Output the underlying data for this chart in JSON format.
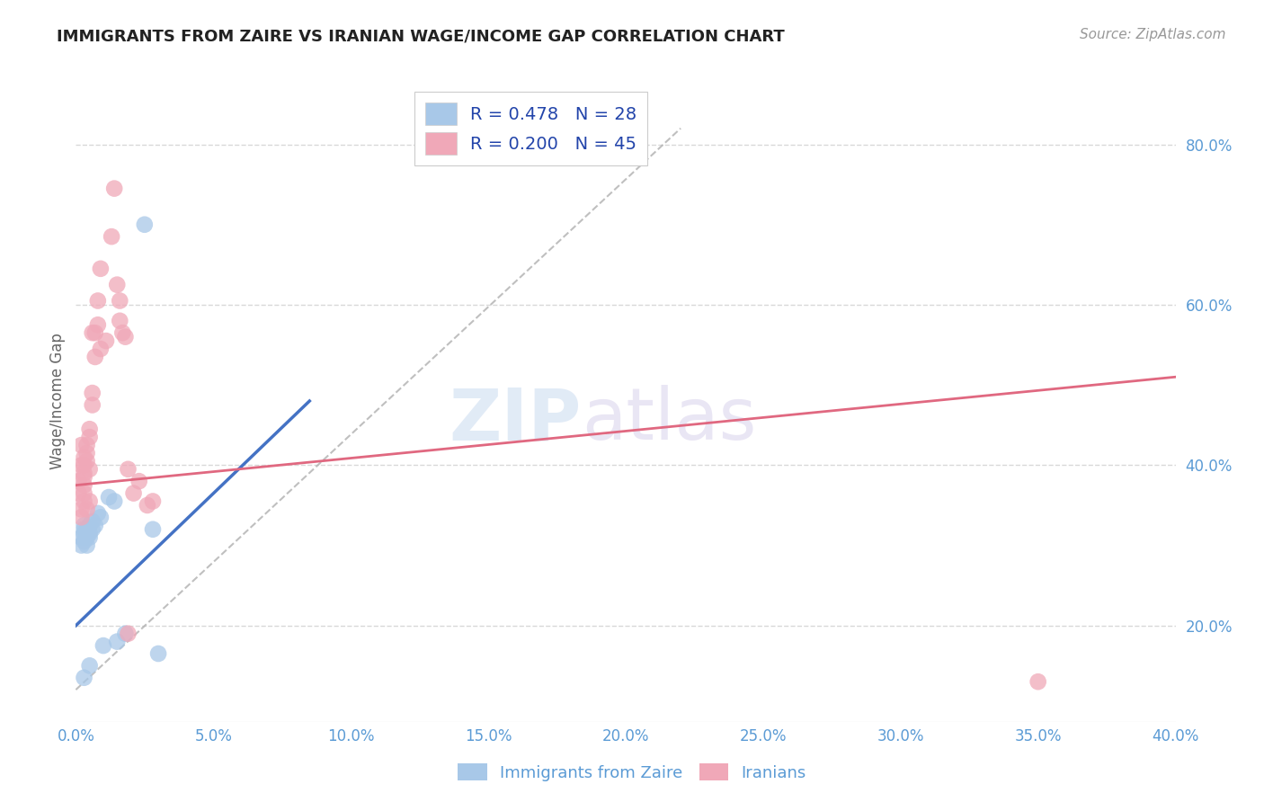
{
  "title": "IMMIGRANTS FROM ZAIRE VS IRANIAN WAGE/INCOME GAP CORRELATION CHART",
  "source": "Source: ZipAtlas.com",
  "ylabel": "Wage/Income Gap",
  "legend_labels": [
    "Immigrants from Zaire",
    "Iranians"
  ],
  "legend_R": [
    0.478,
    0.2
  ],
  "legend_N": [
    28,
    45
  ],
  "xmin": 0.0,
  "xmax": 0.4,
  "ymin": 0.08,
  "ymax": 0.88,
  "yticks": [
    0.2,
    0.4,
    0.6,
    0.8
  ],
  "xticks": [
    0.0,
    0.05,
    0.1,
    0.15,
    0.2,
    0.25,
    0.3,
    0.35,
    0.4
  ],
  "color_blue": "#a8c8e8",
  "color_pink": "#f0a8b8",
  "color_line_blue": "#4472c4",
  "color_line_pink": "#e06880",
  "color_axis_labels": "#5b9bd5",
  "watermark_zip": "ZIP",
  "watermark_atlas": "atlas",
  "blue_points": [
    [
      0.002,
      0.3
    ],
    [
      0.002,
      0.31
    ],
    [
      0.003,
      0.305
    ],
    [
      0.003,
      0.315
    ],
    [
      0.003,
      0.32
    ],
    [
      0.003,
      0.325
    ],
    [
      0.004,
      0.3
    ],
    [
      0.004,
      0.31
    ],
    [
      0.004,
      0.315
    ],
    [
      0.004,
      0.32
    ],
    [
      0.005,
      0.315
    ],
    [
      0.005,
      0.325
    ],
    [
      0.005,
      0.31
    ],
    [
      0.006,
      0.32
    ],
    [
      0.006,
      0.33
    ],
    [
      0.007,
      0.325
    ],
    [
      0.008,
      0.34
    ],
    [
      0.009,
      0.335
    ],
    [
      0.01,
      0.175
    ],
    [
      0.012,
      0.36
    ],
    [
      0.014,
      0.355
    ],
    [
      0.015,
      0.18
    ],
    [
      0.018,
      0.19
    ],
    [
      0.028,
      0.32
    ],
    [
      0.03,
      0.165
    ],
    [
      0.003,
      0.135
    ],
    [
      0.005,
      0.15
    ],
    [
      0.025,
      0.7
    ]
  ],
  "pink_points": [
    [
      0.001,
      0.38
    ],
    [
      0.001,
      0.365
    ],
    [
      0.002,
      0.345
    ],
    [
      0.002,
      0.425
    ],
    [
      0.002,
      0.4
    ],
    [
      0.002,
      0.335
    ],
    [
      0.003,
      0.41
    ],
    [
      0.003,
      0.4
    ],
    [
      0.003,
      0.39
    ],
    [
      0.003,
      0.385
    ],
    [
      0.003,
      0.375
    ],
    [
      0.003,
      0.365
    ],
    [
      0.003,
      0.355
    ],
    [
      0.004,
      0.345
    ],
    [
      0.004,
      0.425
    ],
    [
      0.004,
      0.415
    ],
    [
      0.004,
      0.405
    ],
    [
      0.005,
      0.395
    ],
    [
      0.005,
      0.445
    ],
    [
      0.005,
      0.435
    ],
    [
      0.005,
      0.355
    ],
    [
      0.006,
      0.49
    ],
    [
      0.006,
      0.475
    ],
    [
      0.006,
      0.565
    ],
    [
      0.007,
      0.565
    ],
    [
      0.007,
      0.535
    ],
    [
      0.008,
      0.605
    ],
    [
      0.008,
      0.575
    ],
    [
      0.009,
      0.645
    ],
    [
      0.009,
      0.545
    ],
    [
      0.011,
      0.555
    ],
    [
      0.013,
      0.685
    ],
    [
      0.014,
      0.745
    ],
    [
      0.015,
      0.625
    ],
    [
      0.016,
      0.605
    ],
    [
      0.016,
      0.58
    ],
    [
      0.017,
      0.565
    ],
    [
      0.018,
      0.56
    ],
    [
      0.019,
      0.395
    ],
    [
      0.021,
      0.365
    ],
    [
      0.023,
      0.38
    ],
    [
      0.026,
      0.35
    ],
    [
      0.028,
      0.355
    ],
    [
      0.35,
      0.13
    ],
    [
      0.019,
      0.19
    ]
  ],
  "ref_line": [
    [
      0.0,
      0.12
    ],
    [
      0.22,
      0.82
    ]
  ],
  "blue_reg_line": [
    [
      0.0,
      0.2
    ],
    [
      0.085,
      0.48
    ]
  ],
  "pink_reg_line": [
    [
      0.0,
      0.375
    ],
    [
      0.4,
      0.51
    ]
  ],
  "background_color": "#ffffff",
  "grid_color": "#d8d8d8"
}
